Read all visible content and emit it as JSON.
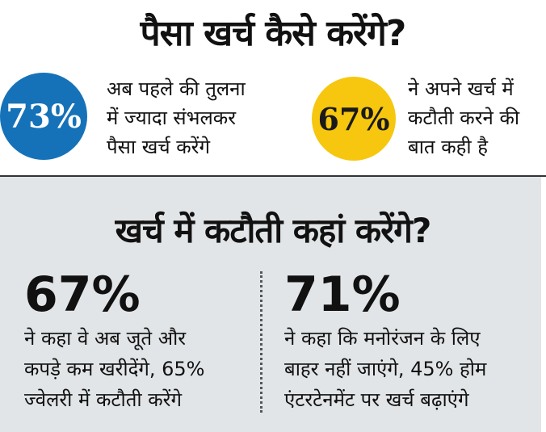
{
  "headline_top": "पैसा खर्च कैसे करेंगे?",
  "stats_top": [
    {
      "value": "73%",
      "color": "#1572b8",
      "text_lines": [
        "अब पहले की तुलना",
        "में ज्यादा संभलकर",
        "पैसा खर्च करेंगे"
      ]
    },
    {
      "value": "67%",
      "color": "#f6c70e",
      "text_lines": [
        "ने अपने खर्च में",
        "कटौती करने की",
        "बात कही है"
      ]
    }
  ],
  "headline_bottom": "खर्च में कटौती कहां करेंगे?",
  "stats_bottom": [
    {
      "value": "67%",
      "text_lines": [
        "ने कहा वे अब जूते और",
        "कपड़े कम खरीदेंगे, 65%",
        "ज्वेलरी में कटौती करेंगे"
      ]
    },
    {
      "value": "71%",
      "text_lines": [
        "ने कहा कि मनोरंजन के लिए",
        "बाहर नहीं जाएंगे, 45% होम",
        "एंटरटेनमेंट पर खर्च बढ़ाएंगे"
      ]
    }
  ],
  "colors": {
    "panel": "#e2e5e7",
    "blue": "#1572b8",
    "yellow": "#f6c70e"
  }
}
